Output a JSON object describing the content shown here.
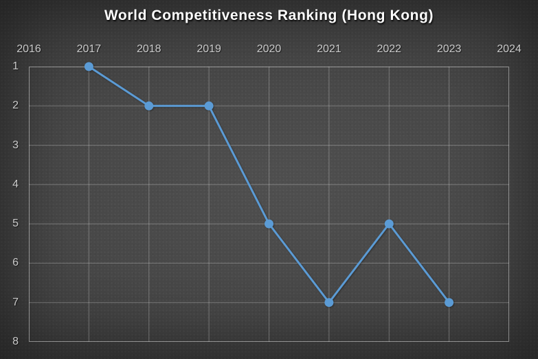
{
  "chart_data": {
    "type": "line",
    "title": "World Competitiveness Ranking (Hong Kong)",
    "x": [
      2017,
      2018,
      2019,
      2020,
      2021,
      2022,
      2023
    ],
    "values": [
      1,
      2,
      2,
      5,
      7,
      5,
      7
    ],
    "series": [
      {
        "name": "World Competitiveness Ranking (Hong Kong)",
        "values": [
          1,
          2,
          2,
          5,
          7,
          5,
          7
        ]
      }
    ],
    "xlabel": "",
    "ylabel": "",
    "x_axis": {
      "min": 2016,
      "max": 2024,
      "ticks": [
        2016,
        2017,
        2018,
        2019,
        2020,
        2021,
        2022,
        2023,
        2024
      ],
      "position": "top"
    },
    "y_axis": {
      "min": 1,
      "max": 8,
      "ticks": [
        1,
        2,
        3,
        4,
        5,
        6,
        7,
        8
      ],
      "position": "left",
      "reversed": true
    },
    "grid": true,
    "legend": false,
    "marker": "circle",
    "marker_radius": 6.5,
    "line_width": 3
  },
  "colors": {
    "line": "#5B9BD5",
    "marker": "#5B9BD5",
    "gridline": "rgba(255,255,255,0.28)",
    "plot_border": "rgba(255,255,255,0.45)",
    "axis_text": "#cbcbcb",
    "title_text": "#ffffff",
    "background_center": "#4f4f4f",
    "background_edge": "#252525"
  }
}
